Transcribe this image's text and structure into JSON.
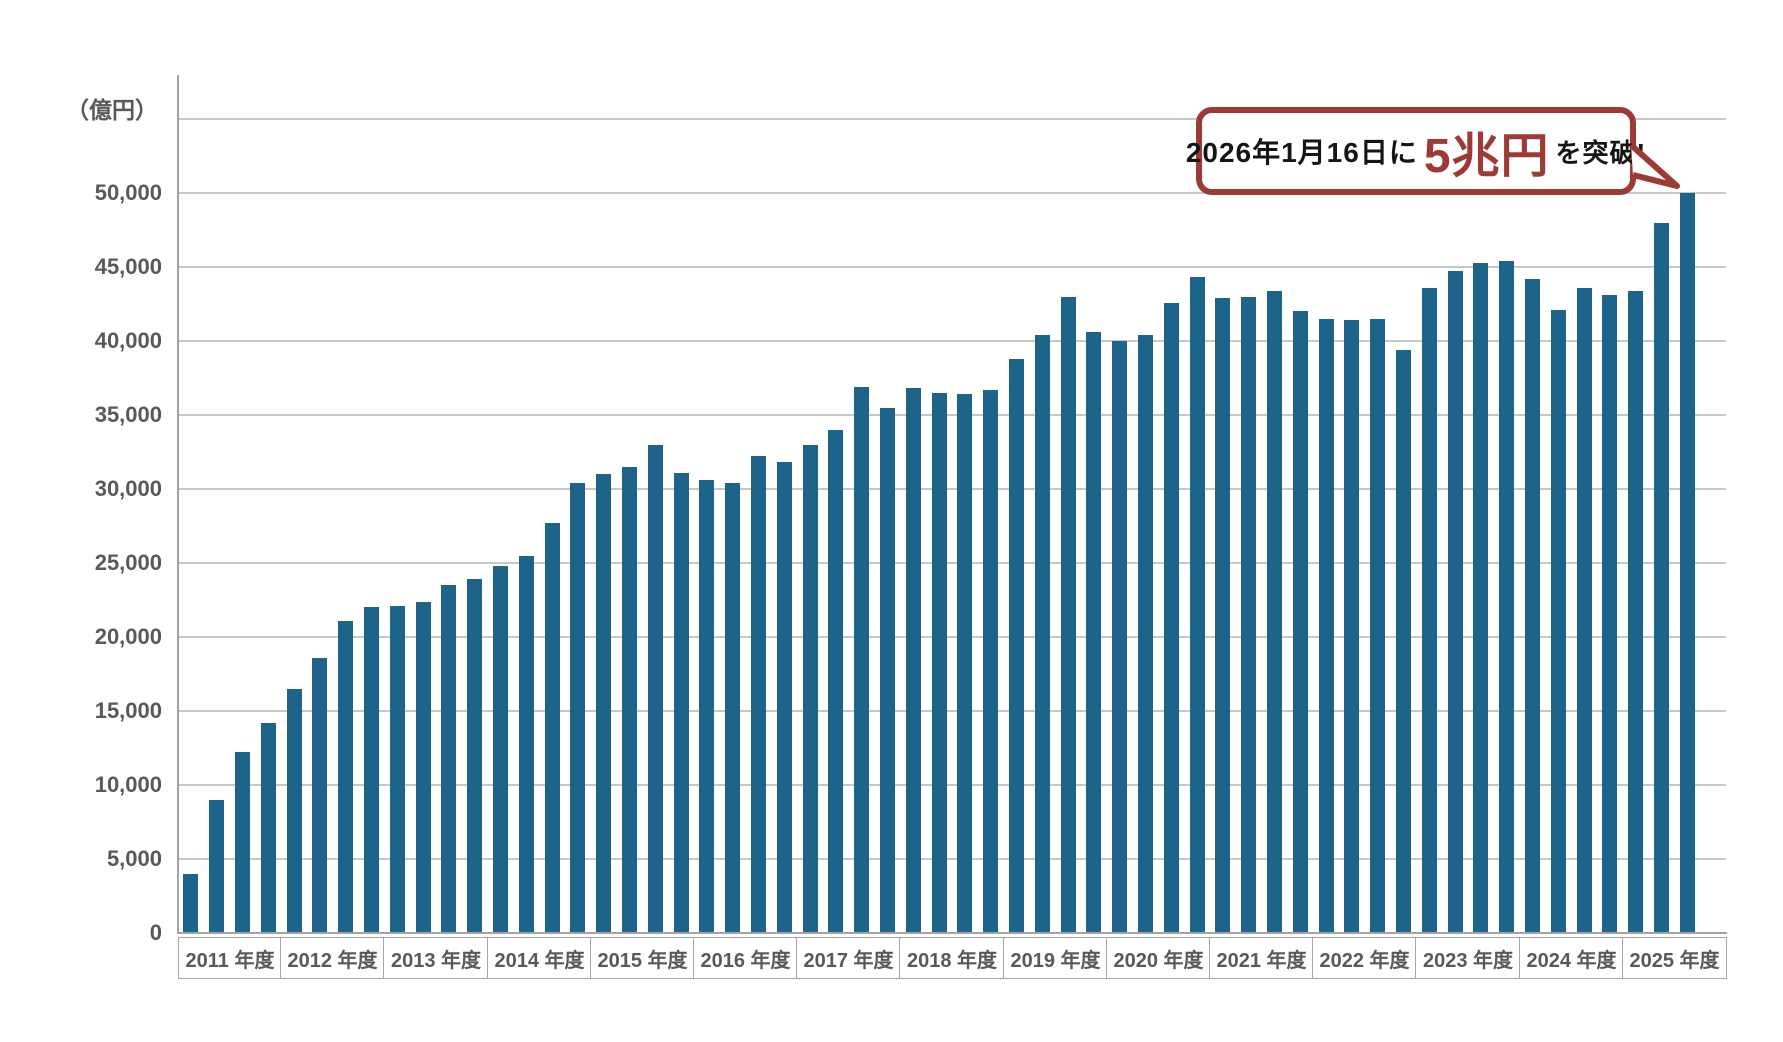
{
  "page": {
    "background_color": "#ffffff",
    "description": "Quarterly bar chart of assets in 100-million-yen units with a speech-bubble annotation about crossing 5 trillion yen"
  },
  "colors": {
    "bar": "#1e6389",
    "gridline": "#c7c7c7",
    "axis_line": "#a3a3a3",
    "label_text": "#595959",
    "callout_border": "#9e3a36",
    "callout_highlight": "#9e3a36",
    "callout_text": "#151515"
  },
  "axis": {
    "unit_label": "（億円）",
    "zero_label": "0"
  },
  "callout": {
    "prefix": "2026年1月16日に",
    "highlight": "5兆円",
    "suffix": "を突破!"
  },
  "chart_data": {
    "type": "bar",
    "title": "",
    "ylabel": "（億円）",
    "unit": "億円",
    "ylim": [
      0,
      55000
    ],
    "ytick_interval": 5000,
    "ytick_labeled_max": 50000,
    "grid": true,
    "legend": null,
    "annotation": "2026年1月16日に5兆円を突破!",
    "categories": [
      "2011 年度",
      "2012 年度",
      "2013 年度",
      "2014 年度",
      "2015 年度",
      "2016 年度",
      "2017 年度",
      "2018 年度",
      "2019 年度",
      "2020 年度",
      "2021 年度",
      "2022 年度",
      "2023 年度",
      "2024 年度",
      "2025 年度"
    ],
    "values_by_year": [
      {
        "year": "2011 年度",
        "quarters": [
          4000,
          9000,
          12200,
          14200
        ]
      },
      {
        "year": "2012 年度",
        "quarters": [
          16500,
          18600,
          21100,
          22000
        ]
      },
      {
        "year": "2013 年度",
        "quarters": [
          22100,
          22400,
          23500,
          23900
        ]
      },
      {
        "year": "2014 年度",
        "quarters": [
          24800,
          25500,
          27700,
          30400
        ]
      },
      {
        "year": "2015 年度",
        "quarters": [
          31000,
          31500,
          33000,
          31100
        ]
      },
      {
        "year": "2016 年度",
        "quarters": [
          30600,
          30400,
          32200,
          31800
        ]
      },
      {
        "year": "2017 年度",
        "quarters": [
          33000,
          34000,
          36900,
          35500
        ]
      },
      {
        "year": "2018 年度",
        "quarters": [
          36800,
          36500,
          36400,
          36700
        ]
      },
      {
        "year": "2019 年度",
        "quarters": [
          38800,
          40400,
          43000,
          40600
        ]
      },
      {
        "year": "2020 年度",
        "quarters": [
          40000,
          40400,
          42600,
          44300
        ]
      },
      {
        "year": "2021 年度",
        "quarters": [
          42900,
          43000,
          43400,
          42000
        ]
      },
      {
        "year": "2022 年度",
        "quarters": [
          41500,
          41400,
          41500,
          39400
        ]
      },
      {
        "year": "2023 年度",
        "quarters": [
          43600,
          44700,
          45300,
          45400
        ]
      },
      {
        "year": "2024 年度",
        "quarters": [
          44200,
          42100,
          43600,
          43100
        ]
      },
      {
        "year": "2025 年度",
        "quarters": [
          43400,
          48000,
          50000
        ]
      }
    ]
  }
}
